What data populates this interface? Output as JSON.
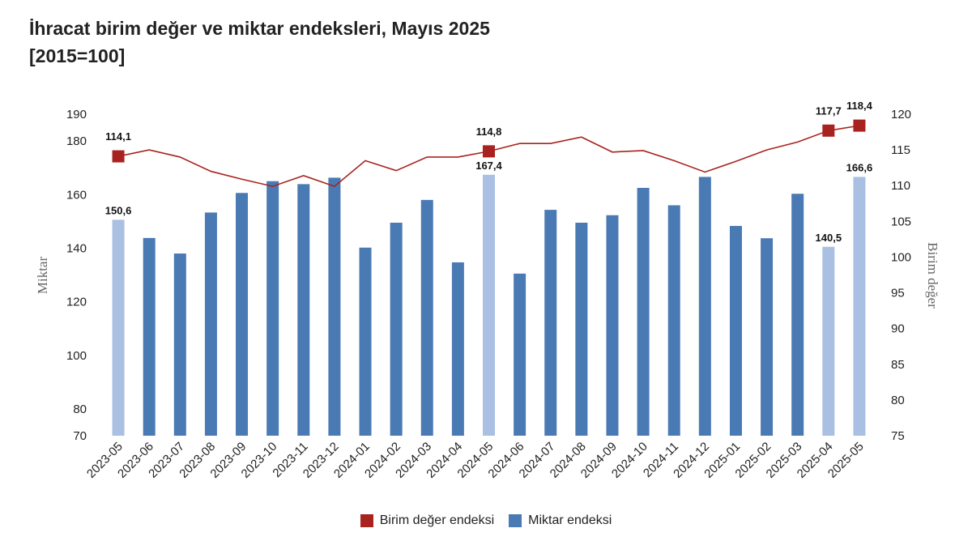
{
  "title": {
    "line1": "İhracat birim değer ve miktar endeksleri, Mayıs 2025",
    "line2": "[2015=100]"
  },
  "colors": {
    "bar": "#4a7ab4",
    "bar_highlight": "#a9c0e2",
    "line": "#a8231f",
    "marker": "#a8231f"
  },
  "chart_data": {
    "type": "bar+line",
    "categories": [
      "2023-05",
      "2023-06",
      "2023-07",
      "2023-08",
      "2023-09",
      "2023-10",
      "2023-11",
      "2023-12",
      "2024-01",
      "2024-02",
      "2024-03",
      "2024-04",
      "2024-05",
      "2024-06",
      "2024-07",
      "2024-08",
      "2024-09",
      "2024-10",
      "2024-11",
      "2024-12",
      "2025-01",
      "2025-02",
      "2025-03",
      "2025-04",
      "2025-05"
    ],
    "series": [
      {
        "name": "Miktar endeksi",
        "axis": "left",
        "kind": "bar",
        "values": [
          150.6,
          143.8,
          138.0,
          153.3,
          160.6,
          165.0,
          163.9,
          166.3,
          140.2,
          149.5,
          158.0,
          134.7,
          167.4,
          130.5,
          154.3,
          149.5,
          152.3,
          162.5,
          156.0,
          166.6,
          148.3,
          143.7,
          160.3,
          140.5,
          166.6
        ],
        "highlight_categories": [
          "2023-05",
          "2024-05",
          "2025-04",
          "2025-05"
        ],
        "labels": {
          "2023-05": "150,6",
          "2024-05": "167,4",
          "2025-04": "140,5",
          "2025-05": "166,6"
        }
      },
      {
        "name": "Birim değer endeksi",
        "axis": "right",
        "kind": "line",
        "values": [
          114.1,
          115.0,
          114.0,
          112.0,
          110.9,
          109.9,
          111.4,
          109.9,
          113.5,
          112.1,
          114.0,
          114.0,
          114.8,
          115.9,
          115.9,
          116.8,
          114.7,
          114.9,
          113.5,
          111.9,
          113.4,
          115.0,
          116.1,
          117.7,
          118.4
        ],
        "marker_categories": [
          "2023-05",
          "2024-05",
          "2025-04",
          "2025-05"
        ],
        "labels": {
          "2023-05": "114,1",
          "2024-05": "114,8",
          "2025-04": "117,7",
          "2025-05": "118,4"
        }
      }
    ],
    "y_left": {
      "label": "Miktar",
      "ticks": [
        70,
        80,
        100,
        120,
        140,
        160,
        180,
        190
      ],
      "range": [
        70,
        190
      ]
    },
    "y_right": {
      "label": "Birim değer",
      "ticks": [
        75,
        80,
        85,
        90,
        95,
        100,
        105,
        110,
        115,
        120
      ],
      "range": [
        75,
        120
      ]
    },
    "legend": [
      {
        "name": "Birim değer endeksi",
        "kind": "marker"
      },
      {
        "name": "Miktar endeksi",
        "kind": "bar"
      }
    ],
    "legend_position": "bottom-center"
  }
}
